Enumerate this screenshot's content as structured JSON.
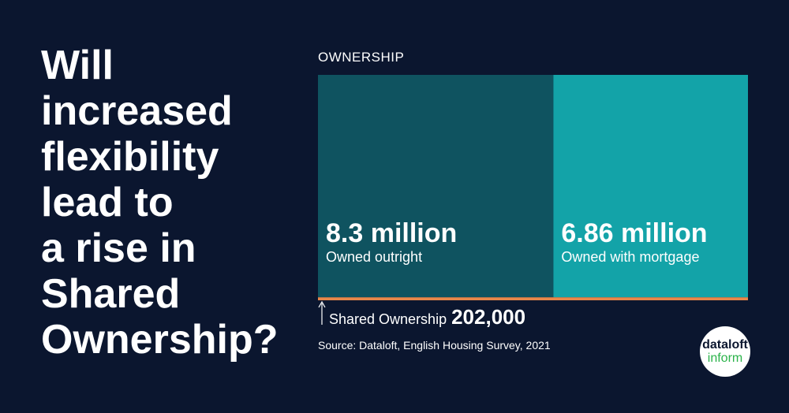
{
  "chart_data": {
    "type": "area-split",
    "title_lines": [
      "Will",
      "increased",
      "flexibility",
      "lead to",
      "a rise in",
      "Shared",
      "Ownership?"
    ],
    "chart_title": "OWNERSHIP",
    "categories": [
      "Owned outright",
      "Owned with mortgage",
      "Shared Ownership"
    ],
    "values": [
      8300000,
      6860000,
      202000
    ],
    "value_labels": [
      "8.3 million",
      "6.86 million",
      "202,000"
    ],
    "colors": [
      "#0f5360",
      "#13a3a8",
      "#e9874a"
    ],
    "source": "Source: Dataloft, English Housing Survey, 2021",
    "logo": [
      "dataloft",
      "inform"
    ]
  }
}
